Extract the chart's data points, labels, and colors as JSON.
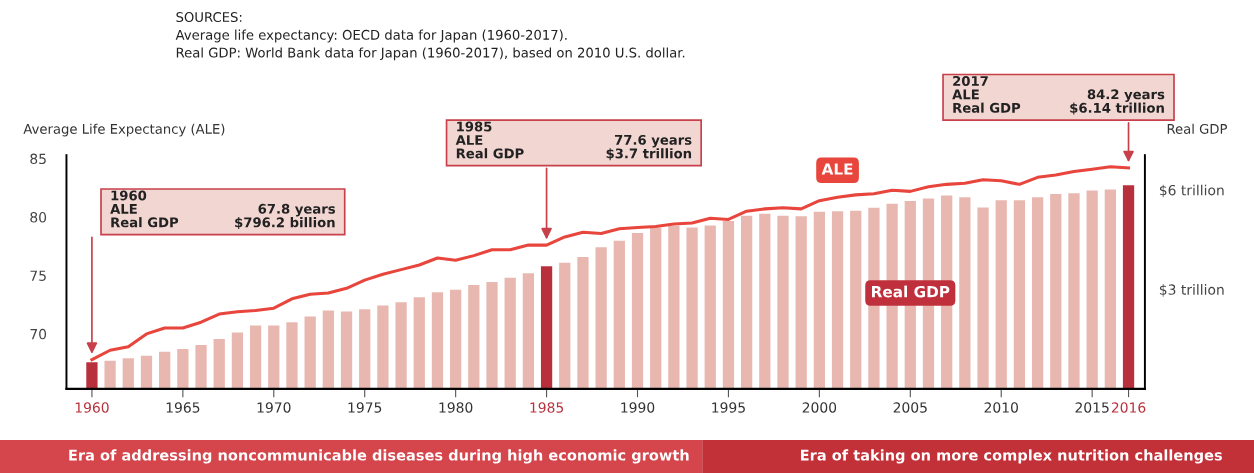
{
  "chart_data": {
    "type": "bar",
    "categories": [
      "1960",
      null,
      null,
      null,
      null,
      "1965",
      null,
      null,
      null,
      null,
      "1970",
      null,
      null,
      null,
      null,
      "1975",
      null,
      null,
      null,
      null,
      "1980",
      null,
      null,
      null,
      null,
      "1985",
      null,
      null,
      null,
      null,
      "1990",
      null,
      null,
      null,
      null,
      "1995",
      null,
      null,
      null,
      null,
      "2000",
      null,
      null,
      null,
      null,
      "2005",
      null,
      null,
      null,
      null,
      "2010",
      null,
      null,
      null,
      null,
      "2015",
      null,
      "2016"
    ],
    "series": [
      {
        "name": "Real GDP",
        "axis": "y2",
        "color": "#e8b8b0",
        "colors": [
          "#b8303c",
          "#e8b8b0",
          "#e8b8b0",
          "#e8b8b0",
          "#e8b8b0",
          "#e8b8b0",
          "#e8b8b0",
          "#e8b8b0",
          "#e8b8b0",
          "#e8b8b0",
          "#e8b8b0",
          "#e8b8b0",
          "#e8b8b0",
          "#e8b8b0",
          "#e8b8b0",
          "#e8b8b0",
          "#e8b8b0",
          "#e8b8b0",
          "#e8b8b0",
          "#e8b8b0",
          "#e8b8b0",
          "#e8b8b0",
          "#e8b8b0",
          "#e8b8b0",
          "#e8b8b0",
          "#b8303c",
          "#e8b8b0",
          "#e8b8b0",
          "#e8b8b0",
          "#e8b8b0",
          "#e8b8b0",
          "#e8b8b0",
          "#e8b8b0",
          "#e8b8b0",
          "#e8b8b0",
          "#e8b8b0",
          "#e8b8b0",
          "#e8b8b0",
          "#e8b8b0",
          "#e8b8b0",
          "#e8b8b0",
          "#e8b8b0",
          "#e8b8b0",
          "#e8b8b0",
          "#e8b8b0",
          "#e8b8b0",
          "#e8b8b0",
          "#e8b8b0",
          "#e8b8b0",
          "#e8b8b0",
          "#e8b8b0",
          "#e8b8b0",
          "#e8b8b0",
          "#e8b8b0",
          "#e8b8b0",
          "#e8b8b0",
          "#e8b8b0",
          "#b8303c"
        ],
        "values": [
          0.8,
          0.85,
          0.92,
          1.0,
          1.12,
          1.2,
          1.32,
          1.5,
          1.7,
          1.91,
          1.91,
          2.01,
          2.18,
          2.36,
          2.33,
          2.4,
          2.51,
          2.61,
          2.76,
          2.91,
          2.99,
          3.13,
          3.22,
          3.35,
          3.49,
          3.7,
          3.8,
          3.98,
          4.27,
          4.47,
          4.7,
          4.86,
          4.92,
          4.87,
          4.93,
          5.06,
          5.22,
          5.28,
          5.22,
          5.21,
          5.34,
          5.36,
          5.37,
          5.46,
          5.58,
          5.67,
          5.74,
          5.83,
          5.78,
          5.47,
          5.69,
          5.69,
          5.78,
          5.88,
          5.9,
          5.98,
          6.01,
          6.14
        ]
      },
      {
        "name": "ALE",
        "type": "line",
        "color": "#e8453c",
        "values": [
          67.8,
          68.6,
          68.9,
          70.0,
          70.5,
          70.5,
          71.0,
          71.7,
          71.9,
          72.0,
          72.2,
          73.0,
          73.4,
          73.5,
          73.9,
          74.6,
          75.1,
          75.5,
          75.9,
          76.5,
          76.3,
          76.7,
          77.2,
          77.2,
          77.6,
          77.6,
          78.3,
          78.7,
          78.6,
          79.0,
          79.1,
          79.2,
          79.4,
          79.5,
          79.9,
          79.8,
          80.5,
          80.7,
          80.8,
          80.7,
          81.4,
          81.7,
          81.9,
          82.0,
          82.3,
          82.2,
          82.6,
          82.8,
          82.9,
          83.2,
          83.1,
          82.8,
          83.4,
          83.6,
          83.9,
          84.1,
          84.3,
          84.2
        ]
      }
    ],
    "ylabel": "Average Life Expectancy (ALE)",
    "y2label": "Real GDP",
    "ylim": [
      65.3,
      85.3
    ],
    "yticks": [
      70,
      75,
      80,
      85
    ],
    "y2lim": [
      0,
      7.05
    ],
    "y2ticks": [
      {
        "value": 3,
        "label": "$3 trillion"
      },
      {
        "value": 6,
        "label": "$6 trillion"
      }
    ],
    "grid": false,
    "legend": false,
    "annotations": [
      "SOURCES:\nAverage life expectancy: OECD data for Japan (1960-2017).\nReal GDP: World Bank data for Japan (1960-2017), based on 2010 U.S. dollar.",
      "Era of addressing noncommunicable diseases during high economic growth",
      "Era of taking on more complex nutrition challenges",
      "1960",
      "ALE",
      "67.8 years",
      "Real GDP",
      "$796.2 billion",
      "1985",
      "ALE",
      "77.6 years",
      "Real GDP",
      "$3.7 trillion",
      "2017",
      "ALE",
      "84.2 years",
      "Real GDP",
      "$6.14 trillion"
    ]
  }
}
